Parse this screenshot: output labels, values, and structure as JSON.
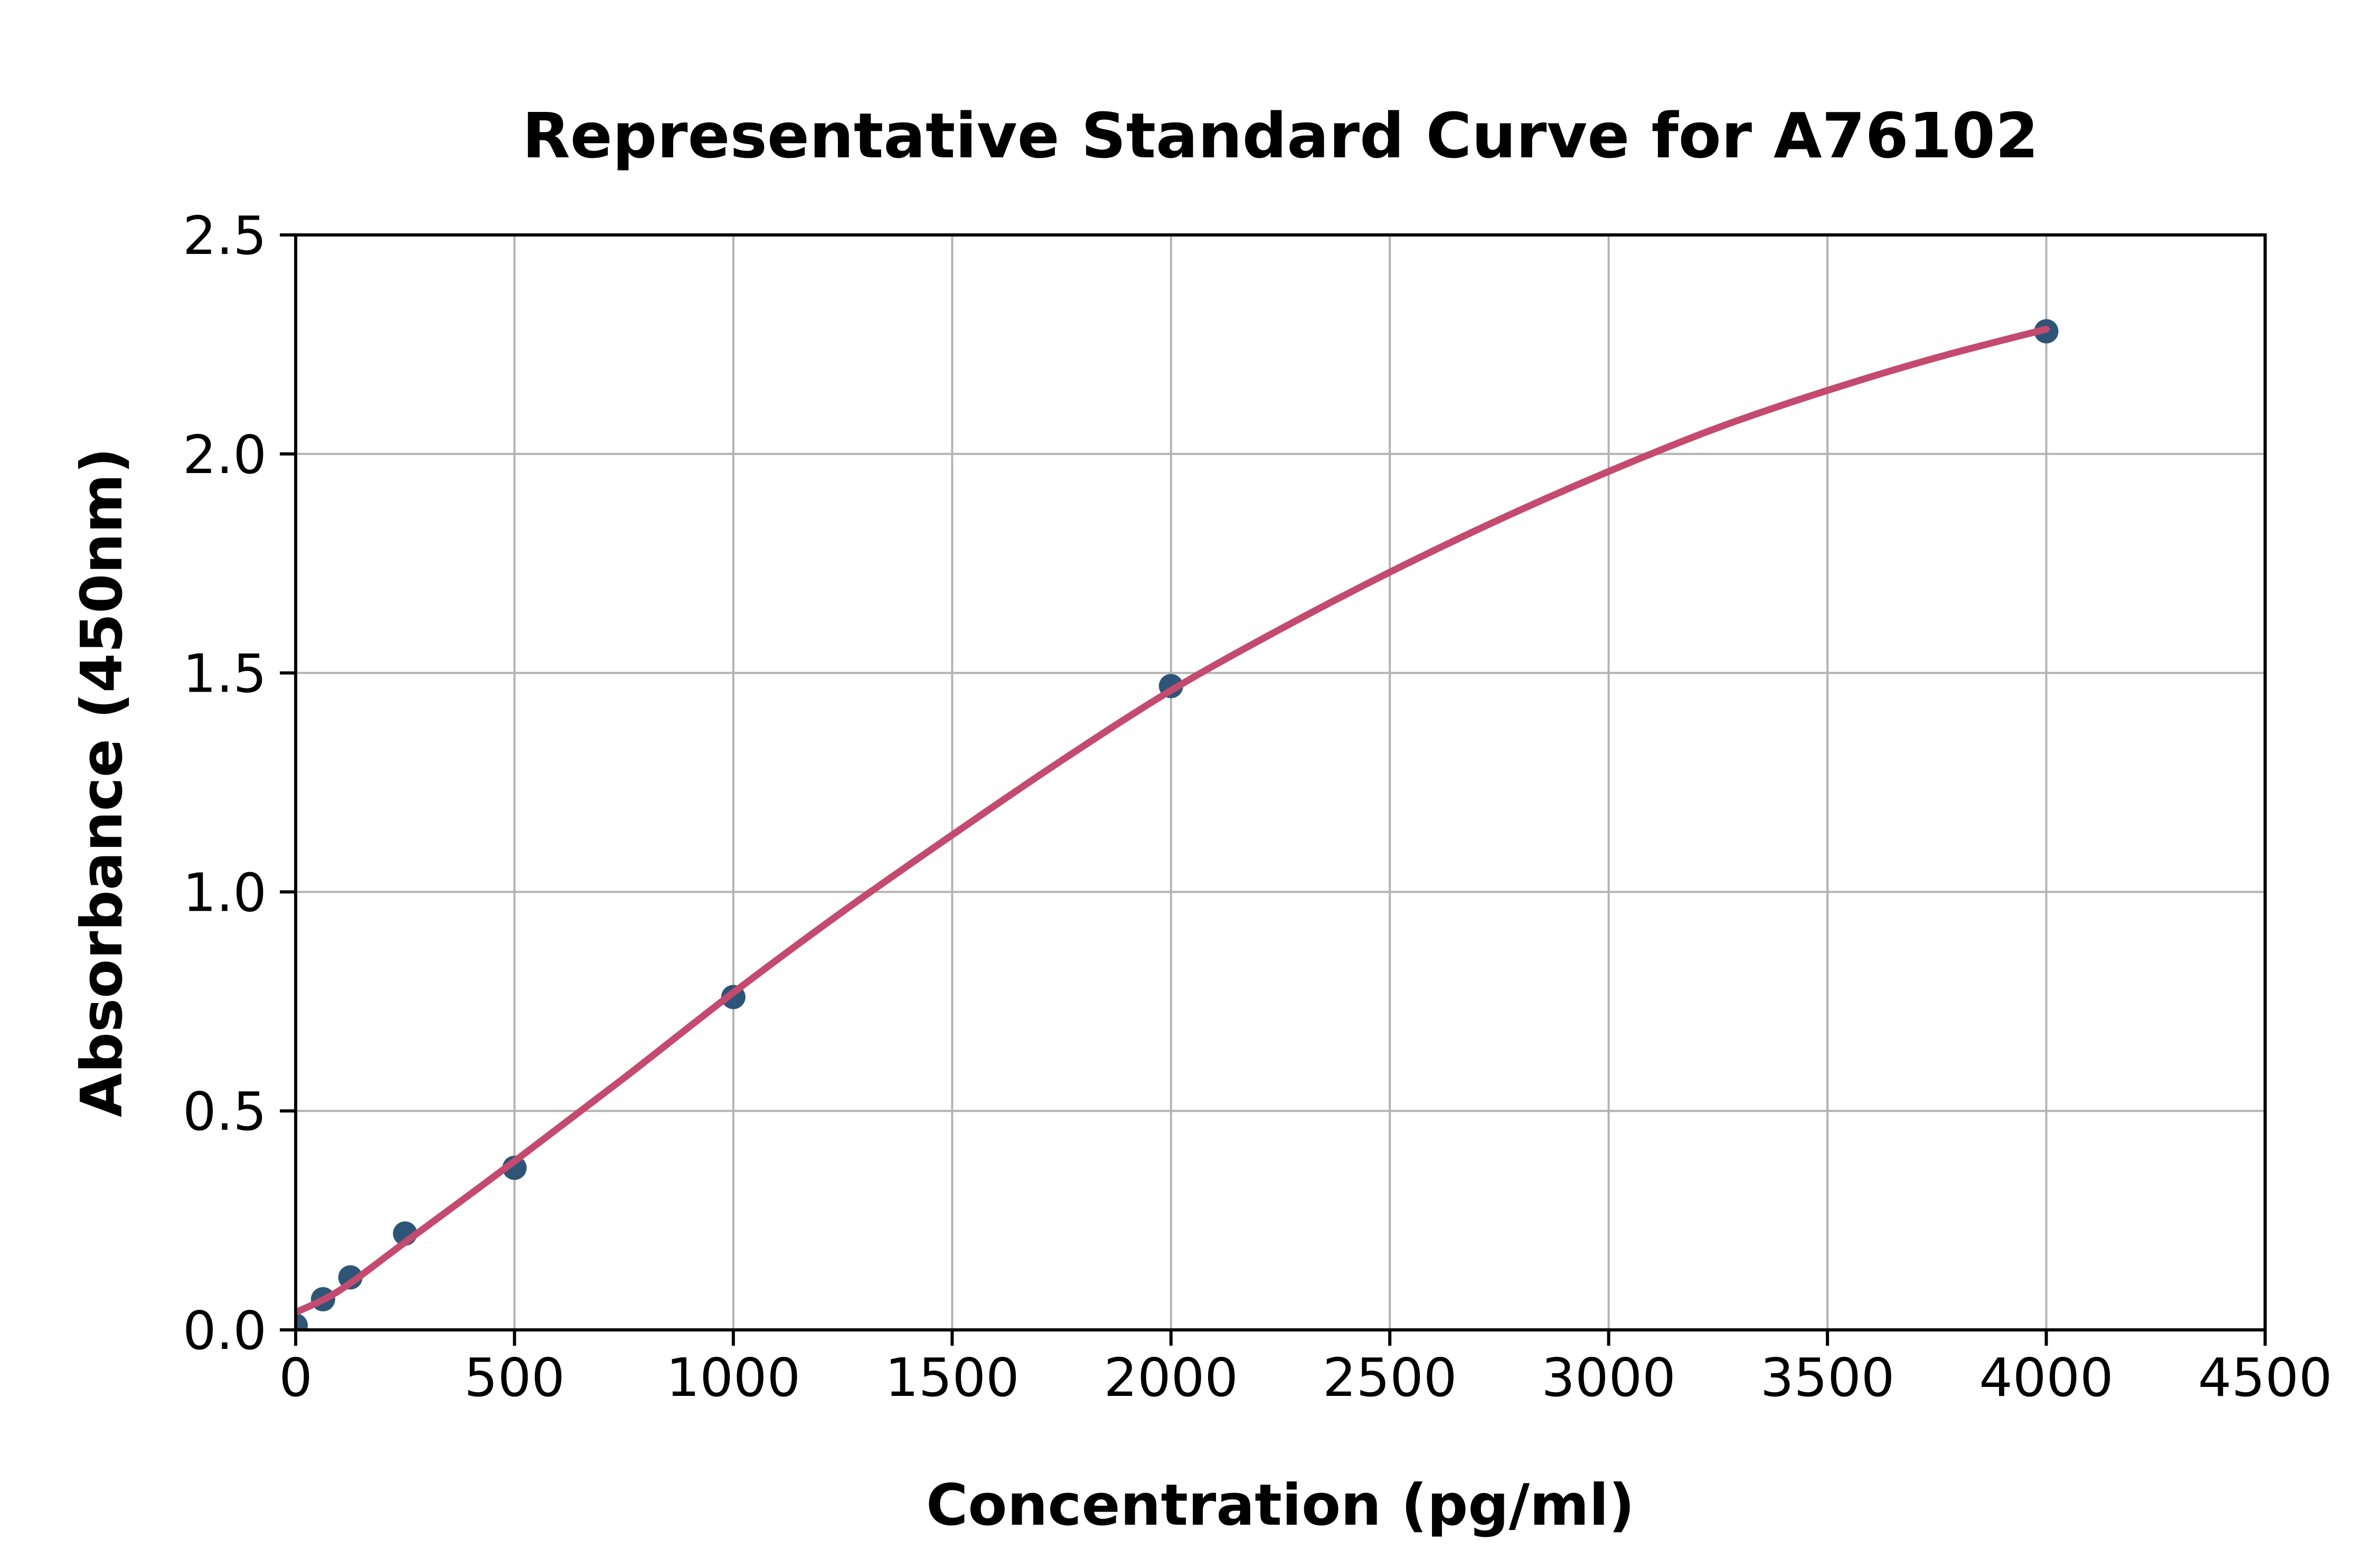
{
  "chart_data": {
    "type": "scatter",
    "title": "Representative Standard Curve for A76102",
    "xlabel": "Concentration (pg/ml)",
    "ylabel": "Absorbance (450nm)",
    "xlim": [
      0,
      4500
    ],
    "ylim": [
      0,
      2.5
    ],
    "xtick_labels": [
      "0",
      "500",
      "1000",
      "1500",
      "2000",
      "2500",
      "3000",
      "3500",
      "4000",
      "4500"
    ],
    "ytick_labels": [
      "0.0",
      "0.5",
      "1.0",
      "1.5",
      "2.0",
      "2.5"
    ],
    "grid": true,
    "legend_position": "none",
    "series": [
      {
        "name": "standard-points",
        "type": "scatter",
        "x": [
          0,
          62.5,
          125,
          250,
          500,
          1000,
          2000,
          4000
        ],
        "y": [
          0.01,
          0.07,
          0.12,
          0.22,
          0.37,
          0.76,
          1.47,
          2.28
        ],
        "color": "#2e5577"
      },
      {
        "name": "fit-curve",
        "type": "line",
        "x": [
          0,
          100,
          250,
          500,
          750,
          1000,
          1250,
          1500,
          1750,
          2000,
          2250,
          2500,
          2750,
          3000,
          3250,
          3500,
          3750,
          4000
        ],
        "y": [
          0.04,
          0.09,
          0.2,
          0.385,
          0.575,
          0.77,
          0.955,
          1.13,
          1.3,
          1.46,
          1.6,
          1.73,
          1.85,
          1.96,
          2.06,
          2.145,
          2.22,
          2.285
        ],
        "color": "#c44a6f"
      }
    ],
    "grid_color": "#b3b3b3",
    "axis_color": "#000000",
    "background_color": "#ffffff"
  }
}
